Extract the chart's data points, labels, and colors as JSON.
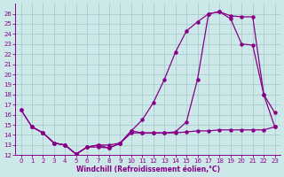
{
  "bg_color": "#cce8e8",
  "line_color": "#880088",
  "grid_color": "#aacccc",
  "xlabel": "Windchill (Refroidissement éolien,°C)",
  "xlim": [
    -0.5,
    23.5
  ],
  "ylim": [
    12,
    27
  ],
  "xticks": [
    0,
    1,
    2,
    3,
    4,
    5,
    6,
    7,
    8,
    9,
    10,
    11,
    12,
    13,
    14,
    15,
    16,
    17,
    18,
    19,
    20,
    21,
    22,
    23
  ],
  "yticks": [
    12,
    13,
    14,
    15,
    16,
    17,
    18,
    19,
    20,
    21,
    22,
    23,
    24,
    25,
    26
  ],
  "curve_a_x": [
    0,
    1,
    2,
    3,
    4,
    5,
    6,
    7,
    8,
    9,
    10,
    11,
    12,
    13,
    14,
    15,
    16,
    17,
    18,
    19,
    20,
    21,
    22,
    23
  ],
  "curve_a_y": [
    16.5,
    14.8,
    14.2,
    13.2,
    13.0,
    12.1,
    12.8,
    12.8,
    12.7,
    13.2,
    14.2,
    14.2,
    14.2,
    14.2,
    14.3,
    15.3,
    19.5,
    26.0,
    26.2,
    25.8,
    25.7,
    25.7,
    18.0,
    16.2
  ],
  "curve_b_x": [
    0,
    1,
    2,
    3,
    4,
    5,
    6,
    7,
    8,
    9,
    10,
    11,
    12,
    13,
    14,
    15,
    16,
    17,
    18,
    19,
    20,
    21,
    22,
    23
  ],
  "curve_b_y": [
    16.5,
    14.8,
    14.2,
    13.2,
    13.0,
    12.1,
    12.8,
    13.0,
    13.0,
    13.2,
    14.4,
    15.5,
    17.2,
    19.5,
    22.2,
    24.3,
    25.2,
    26.0,
    26.2,
    25.5,
    23.0,
    22.9,
    18.0,
    14.8
  ],
  "curve_c_x": [
    1,
    2,
    3,
    4,
    5,
    6,
    7,
    8,
    9,
    10,
    11,
    12,
    13,
    14,
    15,
    16,
    17,
    18,
    19,
    20,
    21,
    22,
    23
  ],
  "curve_c_y": [
    14.8,
    14.2,
    13.2,
    13.0,
    12.1,
    12.8,
    13.0,
    12.7,
    13.2,
    14.4,
    14.2,
    14.2,
    14.2,
    14.2,
    14.3,
    14.4,
    14.4,
    14.5,
    14.5,
    14.5,
    14.5,
    14.5,
    14.8
  ]
}
